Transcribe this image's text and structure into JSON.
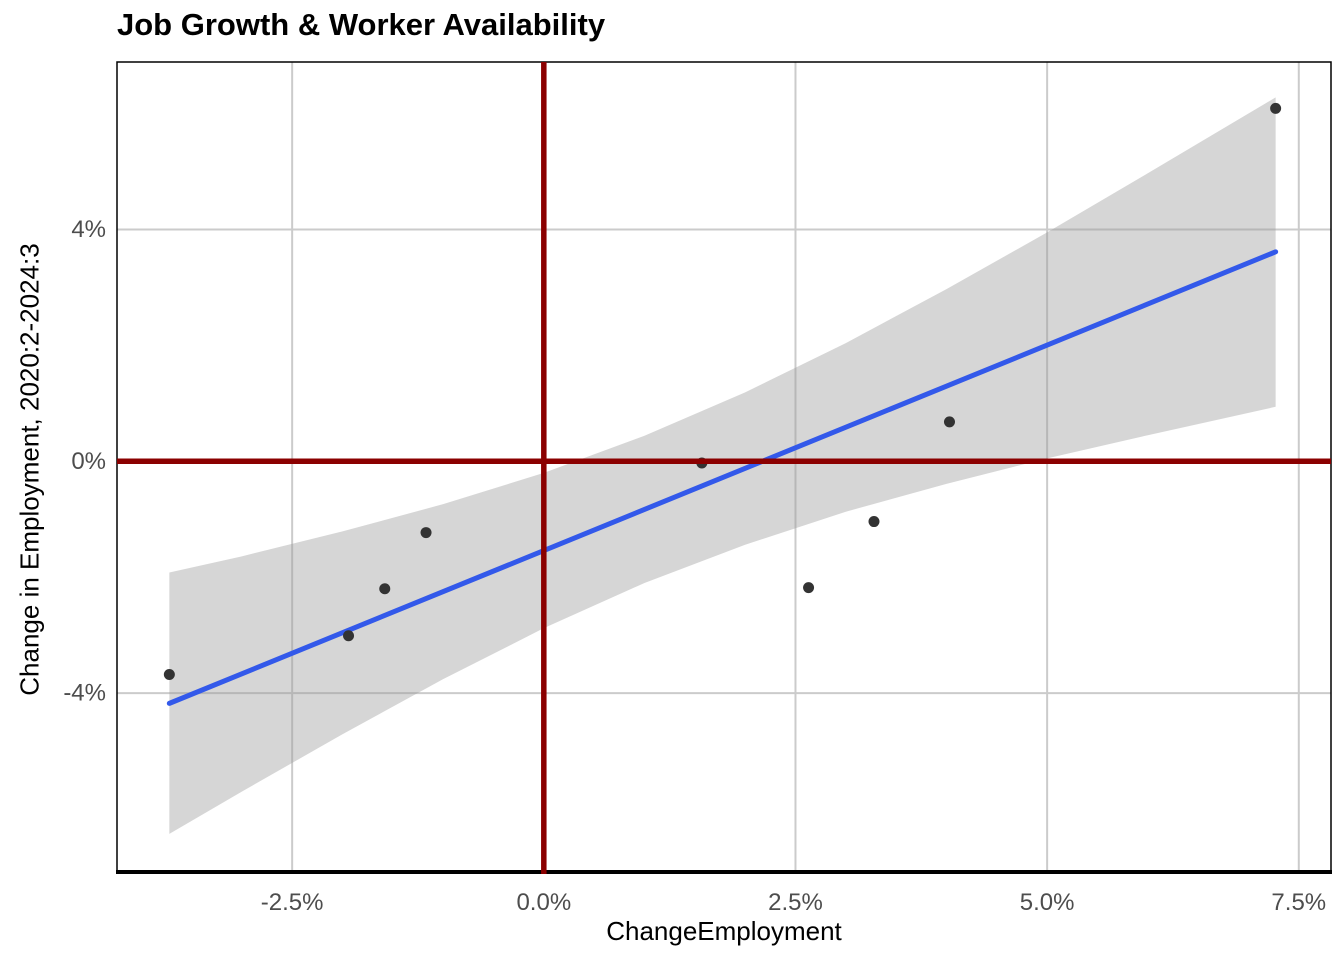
{
  "page": {
    "title": "Job Growth & Worker Availability"
  },
  "chart_data": {
    "type": "scatter",
    "title": "Job Growth & Worker Availability",
    "xlabel": "ChangeEmployment",
    "ylabel": "Change in Employment, 2020:2-2024:3",
    "xlim": [
      -4.24,
      7.82
    ],
    "ylim": [
      -7.07,
      6.89
    ],
    "grid": true,
    "legend": "none",
    "x_ticks": {
      "values": [
        -2.5,
        0.0,
        2.5,
        5.0,
        7.5
      ],
      "labels": [
        "-2.5%",
        "0.0%",
        "2.5%",
        "5.0%",
        "7.5%"
      ]
    },
    "y_ticks": {
      "values": [
        4,
        0,
        -4
      ],
      "labels": [
        "4%",
        "0%",
        "-4%"
      ]
    },
    "points": [
      {
        "x": -3.72,
        "y": -3.68
      },
      {
        "x": -1.94,
        "y": -3.01
      },
      {
        "x": -1.58,
        "y": -2.2
      },
      {
        "x": -1.17,
        "y": -1.23
      },
      {
        "x": 1.57,
        "y": -0.03
      },
      {
        "x": 2.63,
        "y": -2.18
      },
      {
        "x": 3.28,
        "y": -1.04
      },
      {
        "x": 4.03,
        "y": 0.68
      },
      {
        "x": 7.27,
        "y": 6.09
      }
    ],
    "trend_line": {
      "method": "lm",
      "slope": 0.709,
      "intercept": -1.54,
      "x_start": -3.72,
      "x_end": 7.27
    },
    "ci_band": {
      "x": [
        -3.72,
        -3.0,
        -2.0,
        -1.0,
        0.0,
        1.0,
        2.0,
        3.0,
        4.0,
        5.0,
        6.0,
        7.27
      ],
      "upper": [
        -1.92,
        -1.64,
        -1.21,
        -0.74,
        -0.2,
        0.44,
        1.19,
        2.04,
        2.97,
        3.95,
        4.97,
        6.28
      ],
      "lower": [
        -6.43,
        -5.7,
        -4.71,
        -3.76,
        -2.88,
        -2.1,
        -1.44,
        -0.87,
        -0.39,
        0.05,
        0.45,
        0.94
      ]
    },
    "reference_lines": {
      "vline_x": 0,
      "hline_y": 0
    },
    "colors": {
      "trend": "#3359EA",
      "ci_band": "rgba(153,153,153,0.4)",
      "reference": "#8B0000",
      "point": "#333333",
      "grid": "#CBCBCB",
      "tick_label": "#4D4D4D",
      "axis_title": "#000000",
      "title": "#000000",
      "panel_border": "#000000",
      "background": "#FFFFFF"
    }
  }
}
